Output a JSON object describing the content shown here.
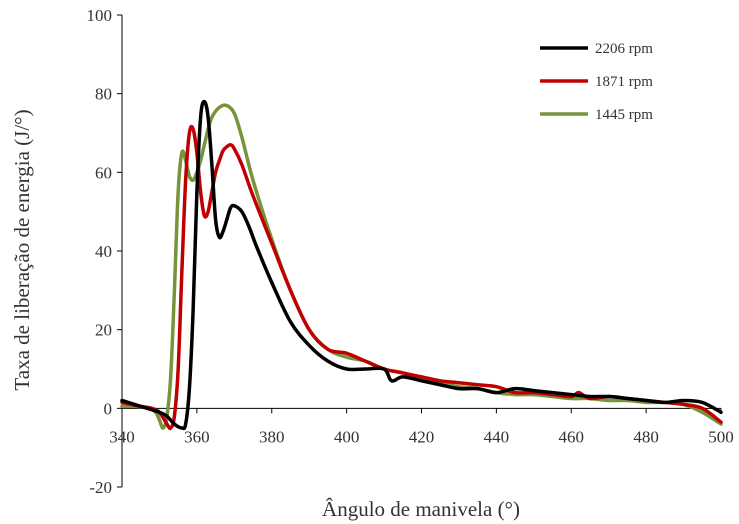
{
  "chart_data": {
    "type": "line",
    "title": "",
    "xlabel": "Ângulo de manivela (°)",
    "ylabel": "Taxa de liberação de energia (J/°)",
    "xlim": [
      340,
      500
    ],
    "ylim": [
      -20,
      100
    ],
    "xticks": [
      340,
      360,
      380,
      400,
      420,
      440,
      460,
      480,
      500
    ],
    "yticks": [
      -20,
      0,
      20,
      40,
      60,
      80,
      100
    ],
    "grid": false,
    "legend": "top-right",
    "series": [
      {
        "name": "2206 rpm",
        "color": "#000000",
        "x": [
          340,
          345,
          350,
          352,
          354,
          356,
          357,
          358,
          359,
          360,
          361,
          362,
          363,
          364,
          365,
          366,
          367,
          368,
          369,
          370,
          372,
          374,
          376,
          380,
          385,
          390,
          395,
          400,
          405,
          410,
          412,
          415,
          420,
          425,
          430,
          435,
          440,
          445,
          450,
          455,
          460,
          465,
          470,
          475,
          480,
          485,
          490,
          495,
          500
        ],
        "y": [
          2,
          0.5,
          -1,
          -2,
          -4,
          -5,
          -4,
          5,
          25,
          55,
          74,
          78,
          74,
          62,
          48,
          43.5,
          45,
          48,
          51,
          51.5,
          50,
          46,
          41,
          32,
          22,
          16,
          12,
          10,
          10,
          10,
          7,
          8,
          7,
          6,
          5,
          5,
          4,
          5,
          4.5,
          4,
          3.5,
          3,
          3,
          2.5,
          2,
          1.5,
          2,
          1.5,
          -1
        ]
      },
      {
        "name": "1871 rpm",
        "color": "#c00000",
        "x": [
          340,
          345,
          348,
          350,
          352,
          353,
          354,
          355,
          356,
          357,
          358,
          359,
          360,
          361,
          362,
          363,
          364,
          365,
          366,
          367,
          368,
          369,
          370,
          372,
          375,
          380,
          385,
          390,
          395,
          400,
          405,
          410,
          415,
          420,
          425,
          430,
          435,
          440,
          445,
          450,
          455,
          460,
          462,
          465,
          470,
          475,
          480,
          485,
          490,
          495,
          500
        ],
        "y": [
          1.5,
          0.5,
          0,
          -1,
          -4,
          -5,
          -2,
          10,
          35,
          58,
          70,
          71,
          65,
          55,
          49,
          50,
          55,
          60,
          63,
          65.5,
          66.5,
          67,
          66,
          62,
          54,
          42,
          30,
          20,
          15,
          14,
          12,
          10,
          9,
          8,
          7,
          6.5,
          6,
          5.5,
          4,
          4,
          3.5,
          3,
          4,
          2.5,
          3,
          2.5,
          2,
          1.5,
          1,
          0,
          -3.5
        ]
      },
      {
        "name": "1445 rpm",
        "color": "#77933c",
        "x": [
          340,
          344,
          347,
          349,
          350,
          351,
          352,
          353,
          354,
          355,
          356,
          357,
          358,
          359,
          360,
          361,
          362,
          363,
          364,
          366,
          368,
          370,
          372,
          375,
          380,
          385,
          390,
          395,
          400,
          405,
          410,
          415,
          420,
          425,
          430,
          435,
          440,
          445,
          450,
          455,
          460,
          465,
          470,
          475,
          480,
          485,
          490,
          495,
          500
        ],
        "y": [
          0.5,
          0.5,
          0,
          -1,
          -3,
          -5,
          -2,
          8,
          30,
          55,
          65,
          63,
          59,
          58,
          60,
          63,
          67,
          71,
          74,
          76.5,
          77,
          75,
          69,
          58,
          43,
          30,
          20,
          15,
          13,
          12,
          10,
          9,
          7.5,
          6.5,
          5.5,
          5,
          4,
          3.5,
          3.5,
          3,
          2.5,
          2.5,
          2,
          2,
          1.5,
          1.5,
          1,
          -1,
          -4
        ]
      }
    ]
  }
}
